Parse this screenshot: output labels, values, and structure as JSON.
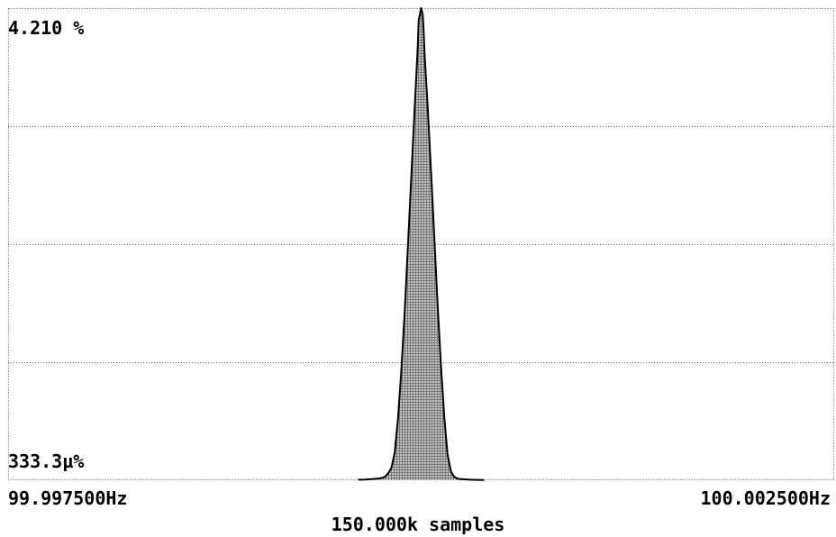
{
  "chart_data": {
    "type": "area",
    "y_max_label": "4.210 %",
    "y_min_label": "333.3µ%",
    "x_min_label": "99.997500Hz",
    "x_max_label": "100.002500Hz",
    "footer": "150.000k samples",
    "xlim": [
      99.9975,
      100.0025
    ],
    "ylim": [
      0,
      4.21
    ],
    "grid": true,
    "grid_lines_y": 3,
    "colors": {
      "fill": "#c8c8c8",
      "outline": "#000000",
      "grid": "#555555",
      "background": "#ffffff"
    },
    "series": [
      {
        "x": [
          99.99962,
          99.99966,
          99.9997,
          99.99974,
          99.99976,
          99.99978,
          99.9998,
          99.99982,
          99.99984,
          99.99986,
          99.99988,
          99.9999,
          99.99992,
          99.99994,
          99.99996,
          99.99998,
          99.999985,
          100.0,
          100.00001,
          100.000015,
          100.00002,
          100.00004,
          100.00006,
          100.00008,
          100.0001,
          100.00012,
          100.00014,
          100.00016,
          100.00018,
          100.0002,
          100.00022,
          100.00024,
          100.00026,
          100.0003,
          100.00034,
          100.00038
        ],
        "values": [
          0.005,
          0.006,
          0.01,
          0.015,
          0.02,
          0.03,
          0.06,
          0.11,
          0.25,
          0.55,
          0.98,
          1.5,
          2.08,
          2.7,
          3.3,
          3.88,
          4.1,
          4.21,
          4.15,
          4.0,
          3.82,
          3.32,
          2.75,
          2.15,
          1.56,
          1.02,
          0.56,
          0.23,
          0.08,
          0.03,
          0.015,
          0.01,
          0.008,
          0.005,
          0.003,
          0.002
        ]
      }
    ]
  }
}
